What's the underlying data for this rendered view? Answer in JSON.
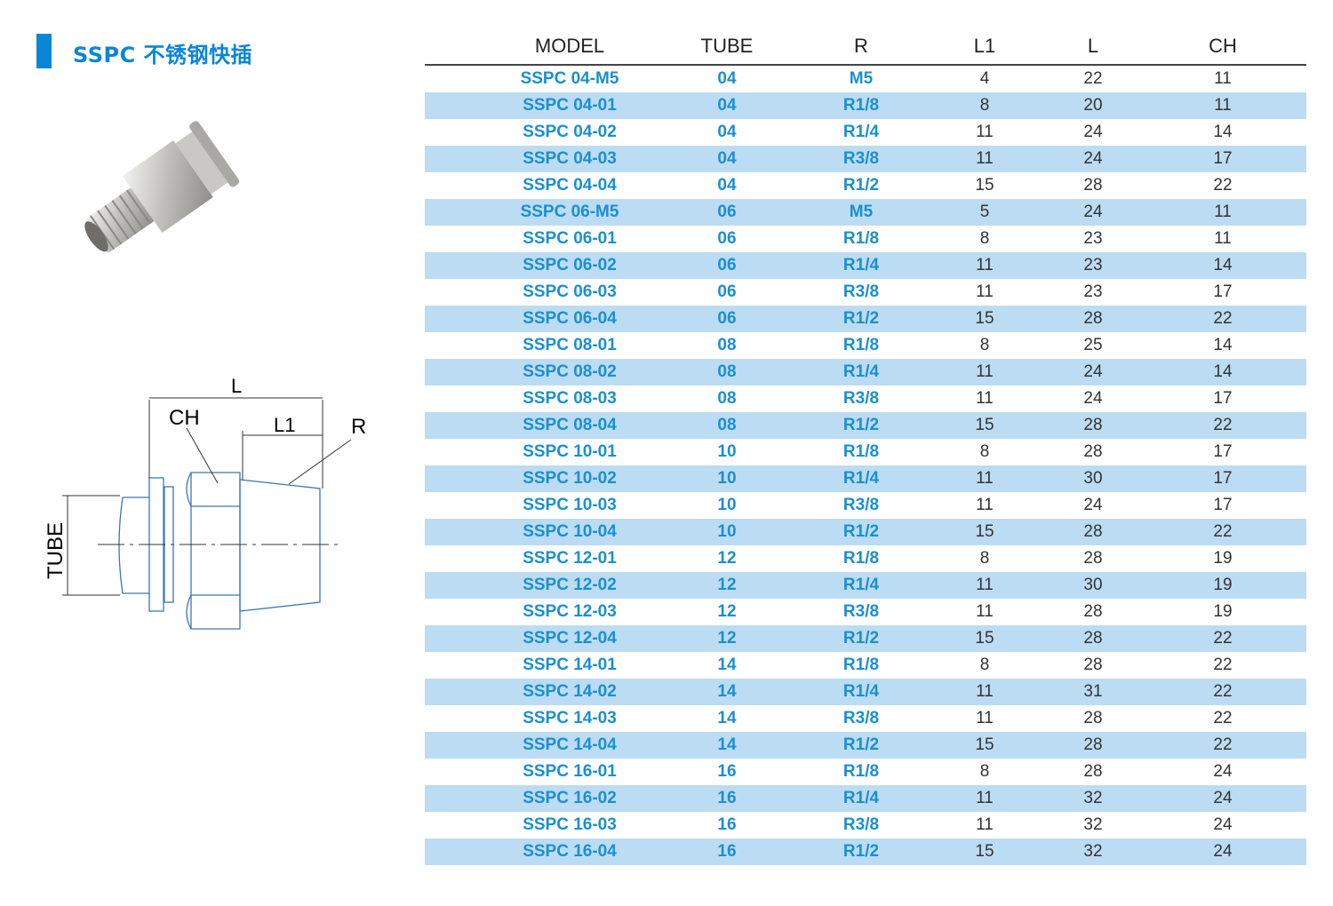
{
  "title": "SSPC 不锈钢快插",
  "colors": {
    "accent": "#0a86d6",
    "stripe": "#bcdcf3",
    "model_text": "#1a8fd3"
  },
  "diagram": {
    "labels": {
      "L": "L",
      "CH": "CH",
      "L1": "L1",
      "R": "R",
      "TUBE": "TUBE"
    }
  },
  "table": {
    "headers": [
      "MODEL",
      "TUBE",
      "R",
      "L1",
      "L",
      "CH"
    ],
    "rows": [
      [
        "SSPC 04-M5",
        "04",
        "M5",
        "4",
        "22",
        "11"
      ],
      [
        "SSPC 04-01",
        "04",
        "R1/8",
        "8",
        "20",
        "11"
      ],
      [
        "SSPC 04-02",
        "04",
        "R1/4",
        "11",
        "24",
        "14"
      ],
      [
        "SSPC 04-03",
        "04",
        "R3/8",
        "11",
        "24",
        "17"
      ],
      [
        "SSPC 04-04",
        "04",
        "R1/2",
        "15",
        "28",
        "22"
      ],
      [
        "SSPC 06-M5",
        "06",
        "M5",
        "5",
        "24",
        "11"
      ],
      [
        "SSPC 06-01",
        "06",
        "R1/8",
        "8",
        "23",
        "11"
      ],
      [
        "SSPC 06-02",
        "06",
        "R1/4",
        "11",
        "23",
        "14"
      ],
      [
        "SSPC 06-03",
        "06",
        "R3/8",
        "11",
        "23",
        "17"
      ],
      [
        "SSPC 06-04",
        "06",
        "R1/2",
        "15",
        "28",
        "22"
      ],
      [
        "SSPC 08-01",
        "08",
        "R1/8",
        "8",
        "25",
        "14"
      ],
      [
        "SSPC 08-02",
        "08",
        "R1/4",
        "11",
        "24",
        "14"
      ],
      [
        "SSPC 08-03",
        "08",
        "R3/8",
        "11",
        "24",
        "17"
      ],
      [
        "SSPC 08-04",
        "08",
        "R1/2",
        "15",
        "28",
        "22"
      ],
      [
        "SSPC 10-01",
        "10",
        "R1/8",
        "8",
        "28",
        "17"
      ],
      [
        "SSPC 10-02",
        "10",
        "R1/4",
        "11",
        "30",
        "17"
      ],
      [
        "SSPC 10-03",
        "10",
        "R3/8",
        "11",
        "24",
        "17"
      ],
      [
        "SSPC 10-04",
        "10",
        "R1/2",
        "15",
        "28",
        "22"
      ],
      [
        "SSPC 12-01",
        "12",
        "R1/8",
        "8",
        "28",
        "19"
      ],
      [
        "SSPC 12-02",
        "12",
        "R1/4",
        "11",
        "30",
        "19"
      ],
      [
        "SSPC 12-03",
        "12",
        "R3/8",
        "11",
        "28",
        "19"
      ],
      [
        "SSPC 12-04",
        "12",
        "R1/2",
        "15",
        "28",
        "22"
      ],
      [
        "SSPC 14-01",
        "14",
        "R1/8",
        "8",
        "28",
        "22"
      ],
      [
        "SSPC 14-02",
        "14",
        "R1/4",
        "11",
        "31",
        "22"
      ],
      [
        "SSPC 14-03",
        "14",
        "R3/8",
        "11",
        "28",
        "22"
      ],
      [
        "SSPC 14-04",
        "14",
        "R1/2",
        "15",
        "28",
        "22"
      ],
      [
        "SSPC 16-01",
        "16",
        "R1/8",
        "8",
        "28",
        "24"
      ],
      [
        "SSPC 16-02",
        "16",
        "R1/4",
        "11",
        "32",
        "24"
      ],
      [
        "SSPC 16-03",
        "16",
        "R3/8",
        "11",
        "32",
        "24"
      ],
      [
        "SSPC 16-04",
        "16",
        "R1/2",
        "15",
        "32",
        "24"
      ]
    ]
  }
}
